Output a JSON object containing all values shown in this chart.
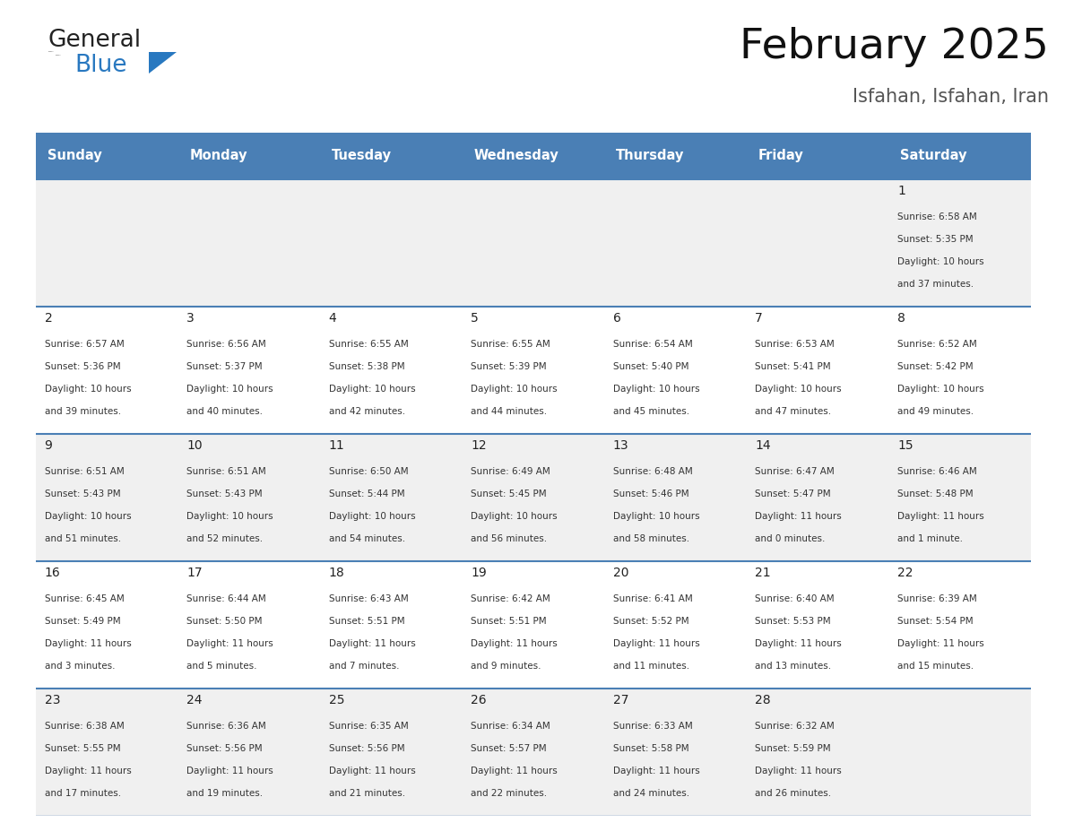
{
  "title": "February 2025",
  "subtitle": "Isfahan, Isfahan, Iran",
  "header_bg": "#4a7fb5",
  "header_text_color": "#ffffff",
  "row_bg_odd": "#f0f0f0",
  "row_bg_even": "#ffffff",
  "separator_color": "#4a7fb5",
  "days_of_week": [
    "Sunday",
    "Monday",
    "Tuesday",
    "Wednesday",
    "Thursday",
    "Friday",
    "Saturday"
  ],
  "calendar_data": {
    "1": {
      "sunrise": "6:58 AM",
      "sunset": "5:35 PM",
      "daylight_hours": 10,
      "daylight_minutes": 37
    },
    "2": {
      "sunrise": "6:57 AM",
      "sunset": "5:36 PM",
      "daylight_hours": 10,
      "daylight_minutes": 39
    },
    "3": {
      "sunrise": "6:56 AM",
      "sunset": "5:37 PM",
      "daylight_hours": 10,
      "daylight_minutes": 40
    },
    "4": {
      "sunrise": "6:55 AM",
      "sunset": "5:38 PM",
      "daylight_hours": 10,
      "daylight_minutes": 42
    },
    "5": {
      "sunrise": "6:55 AM",
      "sunset": "5:39 PM",
      "daylight_hours": 10,
      "daylight_minutes": 44
    },
    "6": {
      "sunrise": "6:54 AM",
      "sunset": "5:40 PM",
      "daylight_hours": 10,
      "daylight_minutes": 45
    },
    "7": {
      "sunrise": "6:53 AM",
      "sunset": "5:41 PM",
      "daylight_hours": 10,
      "daylight_minutes": 47
    },
    "8": {
      "sunrise": "6:52 AM",
      "sunset": "5:42 PM",
      "daylight_hours": 10,
      "daylight_minutes": 49
    },
    "9": {
      "sunrise": "6:51 AM",
      "sunset": "5:43 PM",
      "daylight_hours": 10,
      "daylight_minutes": 51
    },
    "10": {
      "sunrise": "6:51 AM",
      "sunset": "5:43 PM",
      "daylight_hours": 10,
      "daylight_minutes": 52
    },
    "11": {
      "sunrise": "6:50 AM",
      "sunset": "5:44 PM",
      "daylight_hours": 10,
      "daylight_minutes": 54
    },
    "12": {
      "sunrise": "6:49 AM",
      "sunset": "5:45 PM",
      "daylight_hours": 10,
      "daylight_minutes": 56
    },
    "13": {
      "sunrise": "6:48 AM",
      "sunset": "5:46 PM",
      "daylight_hours": 10,
      "daylight_minutes": 58
    },
    "14": {
      "sunrise": "6:47 AM",
      "sunset": "5:47 PM",
      "daylight_hours": 11,
      "daylight_minutes": 0
    },
    "15": {
      "sunrise": "6:46 AM",
      "sunset": "5:48 PM",
      "daylight_hours": 11,
      "daylight_minutes": 1
    },
    "16": {
      "sunrise": "6:45 AM",
      "sunset": "5:49 PM",
      "daylight_hours": 11,
      "daylight_minutes": 3
    },
    "17": {
      "sunrise": "6:44 AM",
      "sunset": "5:50 PM",
      "daylight_hours": 11,
      "daylight_minutes": 5
    },
    "18": {
      "sunrise": "6:43 AM",
      "sunset": "5:51 PM",
      "daylight_hours": 11,
      "daylight_minutes": 7
    },
    "19": {
      "sunrise": "6:42 AM",
      "sunset": "5:51 PM",
      "daylight_hours": 11,
      "daylight_minutes": 9
    },
    "20": {
      "sunrise": "6:41 AM",
      "sunset": "5:52 PM",
      "daylight_hours": 11,
      "daylight_minutes": 11
    },
    "21": {
      "sunrise": "6:40 AM",
      "sunset": "5:53 PM",
      "daylight_hours": 11,
      "daylight_minutes": 13
    },
    "22": {
      "sunrise": "6:39 AM",
      "sunset": "5:54 PM",
      "daylight_hours": 11,
      "daylight_minutes": 15
    },
    "23": {
      "sunrise": "6:38 AM",
      "sunset": "5:55 PM",
      "daylight_hours": 11,
      "daylight_minutes": 17
    },
    "24": {
      "sunrise": "6:36 AM",
      "sunset": "5:56 PM",
      "daylight_hours": 11,
      "daylight_minutes": 19
    },
    "25": {
      "sunrise": "6:35 AM",
      "sunset": "5:56 PM",
      "daylight_hours": 11,
      "daylight_minutes": 21
    },
    "26": {
      "sunrise": "6:34 AM",
      "sunset": "5:57 PM",
      "daylight_hours": 11,
      "daylight_minutes": 22
    },
    "27": {
      "sunrise": "6:33 AM",
      "sunset": "5:58 PM",
      "daylight_hours": 11,
      "daylight_minutes": 24
    },
    "28": {
      "sunrise": "6:32 AM",
      "sunset": "5:59 PM",
      "daylight_hours": 11,
      "daylight_minutes": 26
    }
  },
  "logo_color_general": "#222222",
  "logo_color_blue": "#2878c0",
  "logo_triangle_color": "#2878c0"
}
